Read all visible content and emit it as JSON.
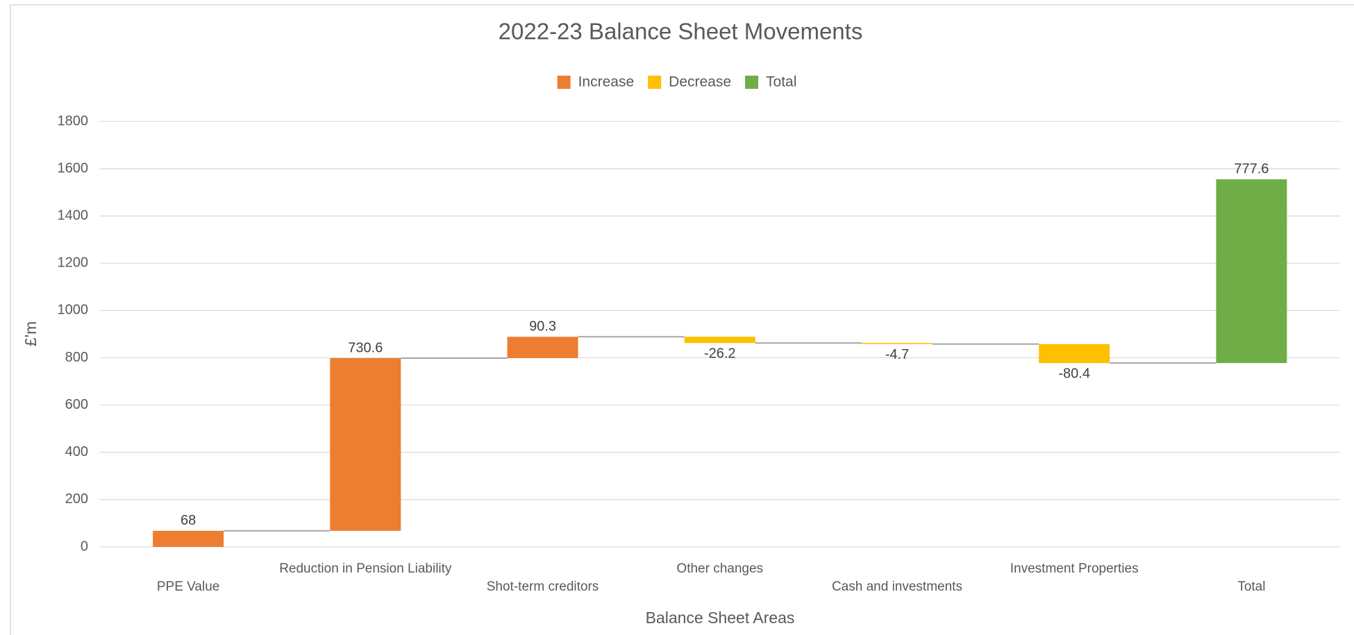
{
  "chart_data": {
    "type": "waterfall",
    "title": "2022-23 Balance Sheet Movements",
    "x_label": "Balance Sheet Areas",
    "y_label": "£'m",
    "categories": [
      "PPE Value",
      "Reduction in Pension Liability",
      "Shot-term creditors",
      "Other changes",
      "Cash and investments",
      "Investment Properties",
      "Total"
    ],
    "series": [
      {
        "name": "Increase",
        "color": "#ed7d31",
        "values": [
          68,
          730.6,
          90.3,
          null,
          null,
          null,
          null
        ]
      },
      {
        "name": "Decrease",
        "color": "#ffc000",
        "values": [
          null,
          null,
          null,
          -26.2,
          -4.7,
          -80.4,
          null
        ]
      },
      {
        "name": "Total",
        "color": "#70ad47",
        "values": [
          null,
          null,
          null,
          null,
          null,
          null,
          777.6
        ]
      }
    ],
    "ylim": [
      0,
      1800
    ],
    "yticks": [
      0,
      200,
      400,
      600,
      800,
      1000,
      1200,
      1400,
      1600,
      1800
    ],
    "grid": true,
    "legend": "top"
  }
}
